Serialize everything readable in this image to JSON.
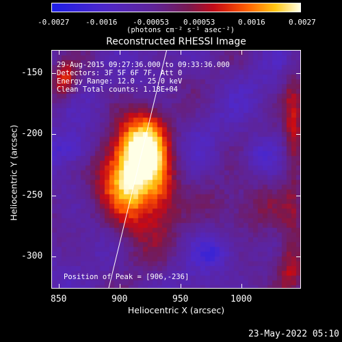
{
  "colorbar": {
    "ticks": [
      "-0.0027",
      "-0.0016",
      "-0.00053",
      "0.00053",
      "0.0016",
      "0.0027"
    ],
    "unit_label": "(photons cm⁻² s⁻¹ asec⁻²)"
  },
  "title": "Reconstructed RHESSI Image",
  "info": {
    "time_range": "29-Aug-2015 09:27:36.000 to 09:33:36.000",
    "detectors": "Detectors: 3F 5F 6F 7F, Att 0",
    "energy": "Energy Range: 12.0 - 25.0 keV",
    "clean": "Clean     Total counts: 1.18E+04",
    "peak": "Position of Peak = [906,-236]"
  },
  "axes": {
    "xlabel": "Heliocentric X (arcsec)",
    "ylabel": "Heliocentric Y (arcsec)",
    "xticks": [
      "850",
      "900",
      "950",
      "1000"
    ],
    "yticks": [
      "-150",
      "-200",
      "-250",
      "-300"
    ]
  },
  "footer_timestamp": "23-May-2022 05:10"
}
